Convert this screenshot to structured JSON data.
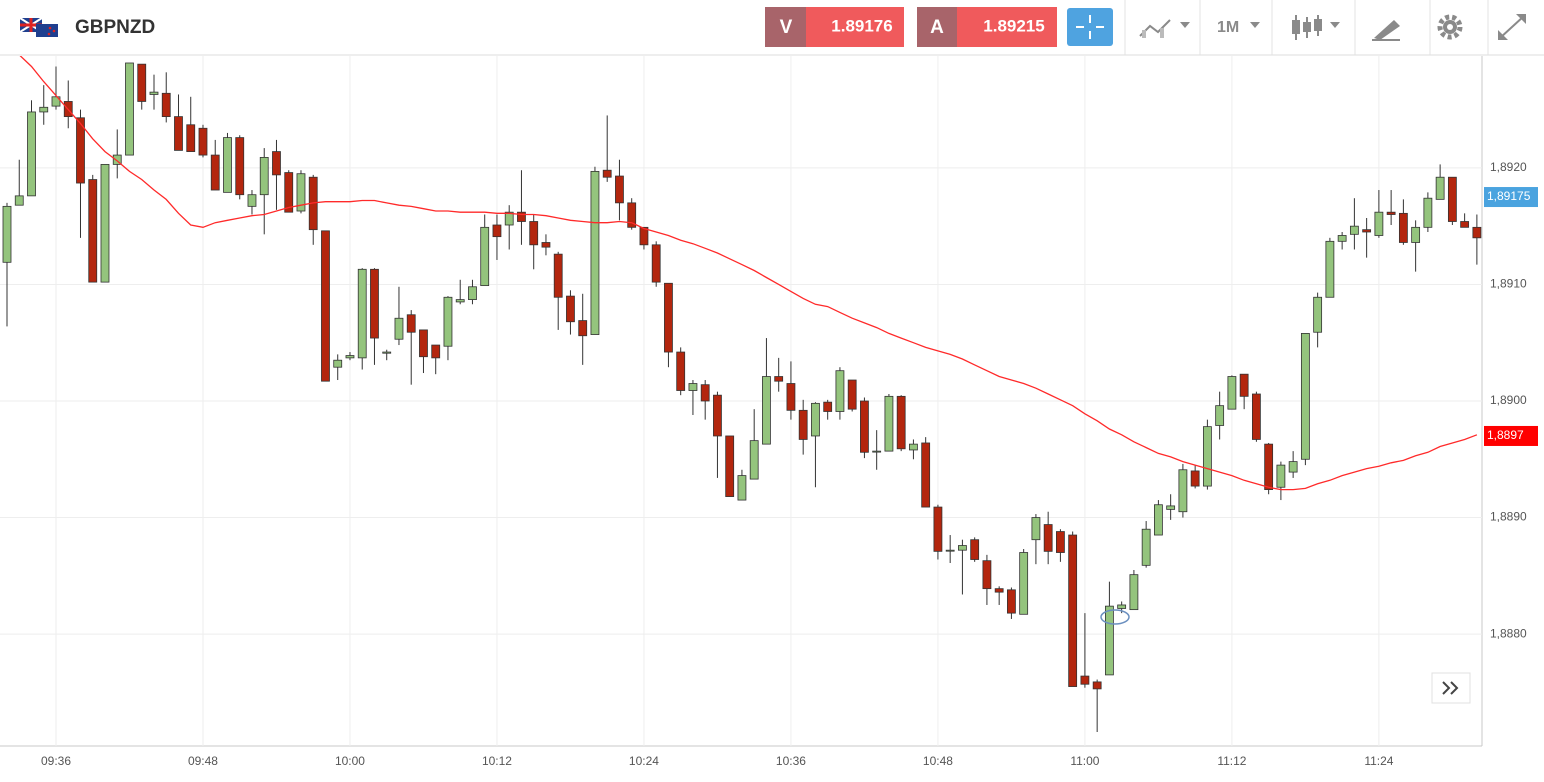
{
  "ui": {
    "symbol": "GBPNZD",
    "bid": {
      "label": "V",
      "price": "1.89176"
    },
    "ask": {
      "label": "A",
      "price": "1.89215"
    },
    "timeframe": "1M"
  },
  "chart_data": {
    "type": "candlestick",
    "categories": [
      null,
      null,
      null,
      null,
      "09:36",
      null,
      null,
      null,
      null,
      null,
      null,
      null,
      null,
      null,
      null,
      null,
      "09:48",
      null,
      null,
      null,
      null,
      null,
      null,
      null,
      null,
      null,
      null,
      null,
      "10:00",
      null,
      null,
      null,
      null,
      null,
      null,
      null,
      null,
      null,
      null,
      null,
      "10:12",
      null,
      null,
      null,
      null,
      null,
      null,
      null,
      null,
      null,
      null,
      null,
      "10:24",
      null,
      null,
      null,
      null,
      null,
      null,
      null,
      null,
      null,
      null,
      null,
      "10:36",
      null,
      null,
      null,
      null,
      null,
      null,
      null,
      null,
      null,
      null,
      null,
      "10:48",
      null,
      null,
      null,
      null,
      null,
      null,
      null,
      null,
      null,
      null,
      null,
      "11:00",
      null,
      null,
      null,
      null,
      null,
      null,
      null,
      null,
      null,
      null,
      null,
      "11:12",
      null,
      null,
      null,
      null,
      null,
      null,
      null,
      null,
      null,
      null,
      null,
      "11:24",
      null,
      null,
      null,
      null,
      null,
      null,
      null,
      null
    ],
    "open": [
      1.89119,
      1.89168,
      1.89176,
      1.89248,
      1.89253,
      1.89257,
      1.89243,
      1.8919,
      1.89102,
      1.89203,
      1.89211,
      1.89289,
      1.89263,
      1.89264,
      1.89244,
      1.89237,
      1.89234,
      1.89211,
      1.89179,
      1.89226,
      1.89167,
      1.89177,
      1.89214,
      1.89196,
      1.89163,
      1.89192,
      1.89146,
      1.89029,
      1.89037,
      1.89037,
      1.89113,
      1.89041,
      1.89053,
      1.89074,
      1.89061,
      1.89048,
      1.89047,
      1.89085,
      1.89087,
      1.89099,
      1.89151,
      1.89151,
      1.89162,
      1.89154,
      1.89136,
      1.89126,
      1.8909,
      1.89069,
      1.89057,
      1.89198,
      1.89193,
      1.8917,
      1.89149,
      1.89134,
      1.89101,
      1.89042,
      1.89009,
      1.89014,
      1.89005,
      1.8897,
      1.88915,
      1.88933,
      1.88963,
      1.89021,
      1.89015,
      1.88992,
      1.8897,
      1.88999,
      1.88991,
      1.89018,
      1.89,
      1.88957,
      1.88957,
      1.89004,
      1.88958,
      1.88964,
      1.88909,
      1.88872,
      1.88872,
      1.88881,
      1.88863,
      1.88839,
      1.88838,
      1.88817,
      1.88881,
      1.88894,
      1.88888,
      1.88885,
      1.88764,
      1.88759,
      1.88765,
      1.88822,
      1.88821,
      1.88859,
      1.88885,
      1.88907,
      1.88905,
      1.8894,
      1.88927,
      1.88979,
      1.88993,
      1.89023,
      1.89006,
      1.88963,
      1.88926,
      1.88939,
      1.8895,
      1.89059,
      1.89089,
      1.89137,
      1.89143,
      1.89147,
      1.89142,
      1.89162,
      1.89161,
      1.89136,
      1.89149,
      1.89173,
      1.89192,
      1.89154,
      1.89149
    ],
    "high": [
      1.8917,
      1.89207,
      1.89258,
      1.89271,
      1.89287,
      1.89275,
      1.8925,
      1.89194,
      1.89203,
      1.89233,
      1.8929,
      1.89289,
      1.8928,
      1.89282,
      1.89263,
      1.89261,
      1.89237,
      1.89224,
      1.8923,
      1.89228,
      1.89181,
      1.89217,
      1.89224,
      1.89198,
      1.89198,
      1.89194,
      1.89146,
      1.8904,
      1.89042,
      1.89114,
      1.89114,
      1.89044,
      1.89098,
      1.89078,
      1.89061,
      1.89048,
      1.8909,
      1.89104,
      1.89104,
      1.8916,
      1.8916,
      1.89168,
      1.89198,
      1.8916,
      1.89143,
      1.89128,
      1.89095,
      1.89092,
      1.89201,
      1.89245,
      1.89207,
      1.89174,
      1.89149,
      1.89137,
      1.89101,
      1.89046,
      1.89018,
      1.89018,
      1.89008,
      1.8897,
      1.88941,
      1.88993,
      1.89054,
      1.89037,
      1.89034,
      1.89001,
      1.88999,
      1.89001,
      1.89029,
      1.89018,
      1.89003,
      1.88975,
      1.89006,
      1.89005,
      1.88967,
      1.88969,
      1.88911,
      1.88885,
      1.88881,
      1.88883,
      1.88868,
      1.88841,
      1.8884,
      1.88873,
      1.88903,
      1.88905,
      1.8889,
      1.88888,
      1.88818,
      1.88761,
      1.88845,
      1.88828,
      1.88855,
      1.88897,
      1.88915,
      1.8892,
      1.88946,
      1.88945,
      1.88984,
      1.89008,
      1.89022,
      1.89023,
      1.89008,
      1.88964,
      1.88948,
      1.88957,
      1.89058,
      1.89093,
      1.8914,
      1.89145,
      1.89174,
      1.89157,
      1.89181,
      1.89181,
      1.89173,
      1.89155,
      1.89179,
      1.89203,
      1.89192,
      1.89161,
      1.8916
    ],
    "low": [
      1.89064,
      1.89168,
      1.89176,
      1.89237,
      1.8925,
      1.89234,
      1.8914,
      1.89102,
      1.89102,
      1.89191,
      1.89211,
      1.8925,
      1.8925,
      1.89239,
      1.89215,
      1.89214,
      1.89209,
      1.89181,
      1.89179,
      1.89173,
      1.8916,
      1.89143,
      1.89164,
      1.89162,
      1.89161,
      1.89134,
      1.89017,
      1.89018,
      1.89035,
      1.89027,
      1.89031,
      1.89035,
      1.89048,
      1.89014,
      1.89024,
      1.89023,
      1.89035,
      1.89083,
      1.89083,
      1.89099,
      1.89121,
      1.8913,
      1.89134,
      1.89113,
      1.89125,
      1.89061,
      1.89057,
      1.89031,
      1.89057,
      1.89188,
      1.89155,
      1.89147,
      1.8913,
      1.89098,
      1.89029,
      1.89005,
      1.88988,
      1.88984,
      1.88934,
      1.88918,
      1.88915,
      1.88933,
      1.88963,
      1.89008,
      1.88984,
      1.88954,
      1.88926,
      1.88984,
      1.88984,
      1.88991,
      1.88951,
      1.88941,
      1.88957,
      1.88957,
      1.8895,
      1.88909,
      1.88864,
      1.88861,
      1.88834,
      1.88862,
      1.88825,
      1.88825,
      1.88813,
      1.88817,
      1.8886,
      1.8886,
      1.88862,
      1.88755,
      1.88754,
      1.88716,
      1.88765,
      1.88818,
      1.88821,
      1.88857,
      1.88885,
      1.88898,
      1.889,
      1.88925,
      1.88924,
      1.88967,
      1.88993,
      1.88993,
      1.88965,
      1.8892,
      1.88915,
      1.88934,
      1.88945,
      1.89046,
      1.89089,
      1.8913,
      1.8913,
      1.89123,
      1.8914,
      1.89151,
      1.89134,
      1.89111,
      1.89145,
      1.89173,
      1.89151,
      1.89149,
      1.89117
    ],
    "close": [
      1.89167,
      1.89176,
      1.89248,
      1.89252,
      1.89261,
      1.89244,
      1.89187,
      1.89102,
      1.89203,
      1.89211,
      1.8929,
      1.89257,
      1.89265,
      1.89244,
      1.89215,
      1.89214,
      1.89211,
      1.89181,
      1.89226,
      1.89177,
      1.89177,
      1.89209,
      1.89194,
      1.89162,
      1.89195,
      1.89147,
      1.89017,
      1.89035,
      1.89039,
      1.89113,
      1.89054,
      1.89042,
      1.89071,
      1.89059,
      1.89038,
      1.89037,
      1.89089,
      1.89087,
      1.89098,
      1.89149,
      1.89141,
      1.89162,
      1.89154,
      1.89134,
      1.89132,
      1.89089,
      1.89068,
      1.89056,
      1.89197,
      1.89192,
      1.8917,
      1.89149,
      1.89134,
      1.89102,
      1.89042,
      1.89009,
      1.89015,
      1.89,
      1.8897,
      1.88918,
      1.88936,
      1.88966,
      1.89021,
      1.89017,
      1.88992,
      1.88967,
      1.88998,
      1.88991,
      1.89026,
      1.88993,
      1.88956,
      1.88957,
      1.89004,
      1.88959,
      1.88963,
      1.88909,
      1.88871,
      1.88872,
      1.88876,
      1.88864,
      1.88839,
      1.88836,
      1.88818,
      1.8887,
      1.889,
      1.88871,
      1.8887,
      1.88755,
      1.88757,
      1.88753,
      1.88824,
      1.88825,
      1.88851,
      1.8889,
      1.88911,
      1.8891,
      1.88941,
      1.88927,
      1.88978,
      1.88996,
      1.89021,
      1.89004,
      1.88967,
      1.88924,
      1.88945,
      1.88948,
      1.89058,
      1.89089,
      1.89137,
      1.89142,
      1.8915,
      1.89145,
      1.89162,
      1.8916,
      1.89136,
      1.89149,
      1.89174,
      1.89192,
      1.89154,
      1.89149,
      1.8914
    ],
    "up_color": "#94c47d",
    "down_color": "#b3260e",
    "outline_color": "#333333",
    "moving_average": {
      "color": "#ff2a2a",
      "values": [
        1.89306,
        1.89297,
        1.89287,
        1.89274,
        1.89262,
        1.8925,
        1.89238,
        1.89225,
        1.89214,
        1.89206,
        1.89197,
        1.8919,
        1.89181,
        1.89173,
        1.89161,
        1.89151,
        1.89149,
        1.89153,
        1.89155,
        1.89157,
        1.89159,
        1.8916,
        1.89163,
        1.89166,
        1.89168,
        1.8917,
        1.89171,
        1.89171,
        1.89171,
        1.89172,
        1.89172,
        1.8917,
        1.89168,
        1.89167,
        1.89165,
        1.89163,
        1.89163,
        1.89162,
        1.89162,
        1.89162,
        1.89161,
        1.89161,
        1.8916,
        1.8916,
        1.89159,
        1.89157,
        1.89155,
        1.89154,
        1.89153,
        1.89153,
        1.89154,
        1.89153,
        1.89148,
        1.89145,
        1.89142,
        1.89138,
        1.89135,
        1.89131,
        1.89127,
        1.89122,
        1.89117,
        1.89112,
        1.89106,
        1.891,
        1.89094,
        1.89088,
        1.89083,
        1.89081,
        1.89076,
        1.89071,
        1.89067,
        1.89063,
        1.89058,
        1.89054,
        1.8905,
        1.89046,
        1.89043,
        1.8904,
        1.89036,
        1.89031,
        1.89026,
        1.89021,
        1.89018,
        1.89015,
        1.89011,
        1.89006,
        1.89001,
        1.88996,
        1.88989,
        1.88983,
        1.88976,
        1.88971,
        1.88965,
        1.8896,
        1.88955,
        1.88952,
        1.88948,
        1.88945,
        1.88942,
        1.88939,
        1.88936,
        1.88932,
        1.88929,
        1.88926,
        1.88924,
        1.88924,
        1.88925,
        1.88929,
        1.88932,
        1.88936,
        1.88939,
        1.88942,
        1.88944,
        1.88947,
        1.88949,
        1.88953,
        1.88956,
        1.88961,
        1.88964,
        1.88967,
        1.88971
      ]
    },
    "ylim": [
      1.88704,
      1.89296
    ],
    "yticks": [
      {
        "value": 1.888,
        "label": "1,8880"
      },
      {
        "value": 1.889,
        "label": "1,8890"
      },
      {
        "value": 1.89,
        "label": "1,8900"
      },
      {
        "value": 1.891,
        "label": "1,8910"
      },
      {
        "value": 1.892,
        "label": "1,8920"
      }
    ],
    "grid": true,
    "price_tags": [
      {
        "value": 1.89175,
        "label": "1,89175",
        "color": "#4aa3df"
      },
      {
        "value": 1.8897,
        "label": "1,8897",
        "color": "#ff0000"
      }
    ]
  }
}
